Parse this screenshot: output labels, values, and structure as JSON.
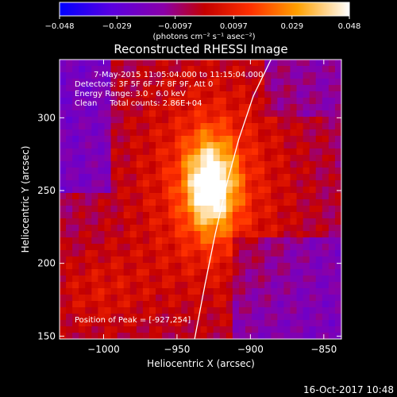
{
  "chart_data": {
    "type": "heatmap",
    "title": "Reconstructed RHESSI Image",
    "xlabel": "Heliocentric X (arcsec)",
    "ylabel": "Heliocentric Y (arcsec)",
    "xlim": [
      -1030,
      -838
    ],
    "ylim": [
      148,
      340
    ],
    "xticks": [
      -1000,
      -950,
      -900,
      -850
    ],
    "xtick_labels": [
      "−1000",
      "−950",
      "−900",
      "−850"
    ],
    "yticks": [
      150,
      200,
      250,
      300
    ],
    "ytick_labels": [
      "150",
      "200",
      "250",
      "300"
    ],
    "colorbar": {
      "ticks": [
        -0.048,
        -0.029,
        -0.0097,
        0.0097,
        0.029,
        0.048
      ],
      "tick_labels": [
        "−0.048",
        "−0.029",
        "−0.0097",
        "0.0097",
        "0.029",
        "0.048"
      ],
      "unit_label": "(photons cm⁻² s⁻¹ asec⁻²)",
      "range": [
        -0.048,
        0.048
      ],
      "colors": [
        "#0000ff",
        "#7a00c8",
        "#c40000",
        "#ff4a00",
        "#ffa000",
        "#ffffff"
      ]
    },
    "info_lines": [
      "7-May-2015 11:05:04.000 to 11:15:04.000",
      "Detectors: 3F 5F 6F 7F 8F 9F, Att 0",
      "Energy Range: 3.0 - 6.0 keV",
      "Clean     Total counts: 2.86E+04"
    ],
    "peak_label": "Position of Peak = [-927,254]",
    "peak": {
      "x": -927,
      "y": 254,
      "value": 0.048
    },
    "limb_curve": {
      "x": [
        -938,
        -931,
        -924,
        -916,
        -908,
        -898,
        -886
      ],
      "y": [
        148,
        185,
        220,
        255,
        285,
        315,
        340
      ]
    },
    "timestamp": "16-Oct-2017 10:48"
  }
}
